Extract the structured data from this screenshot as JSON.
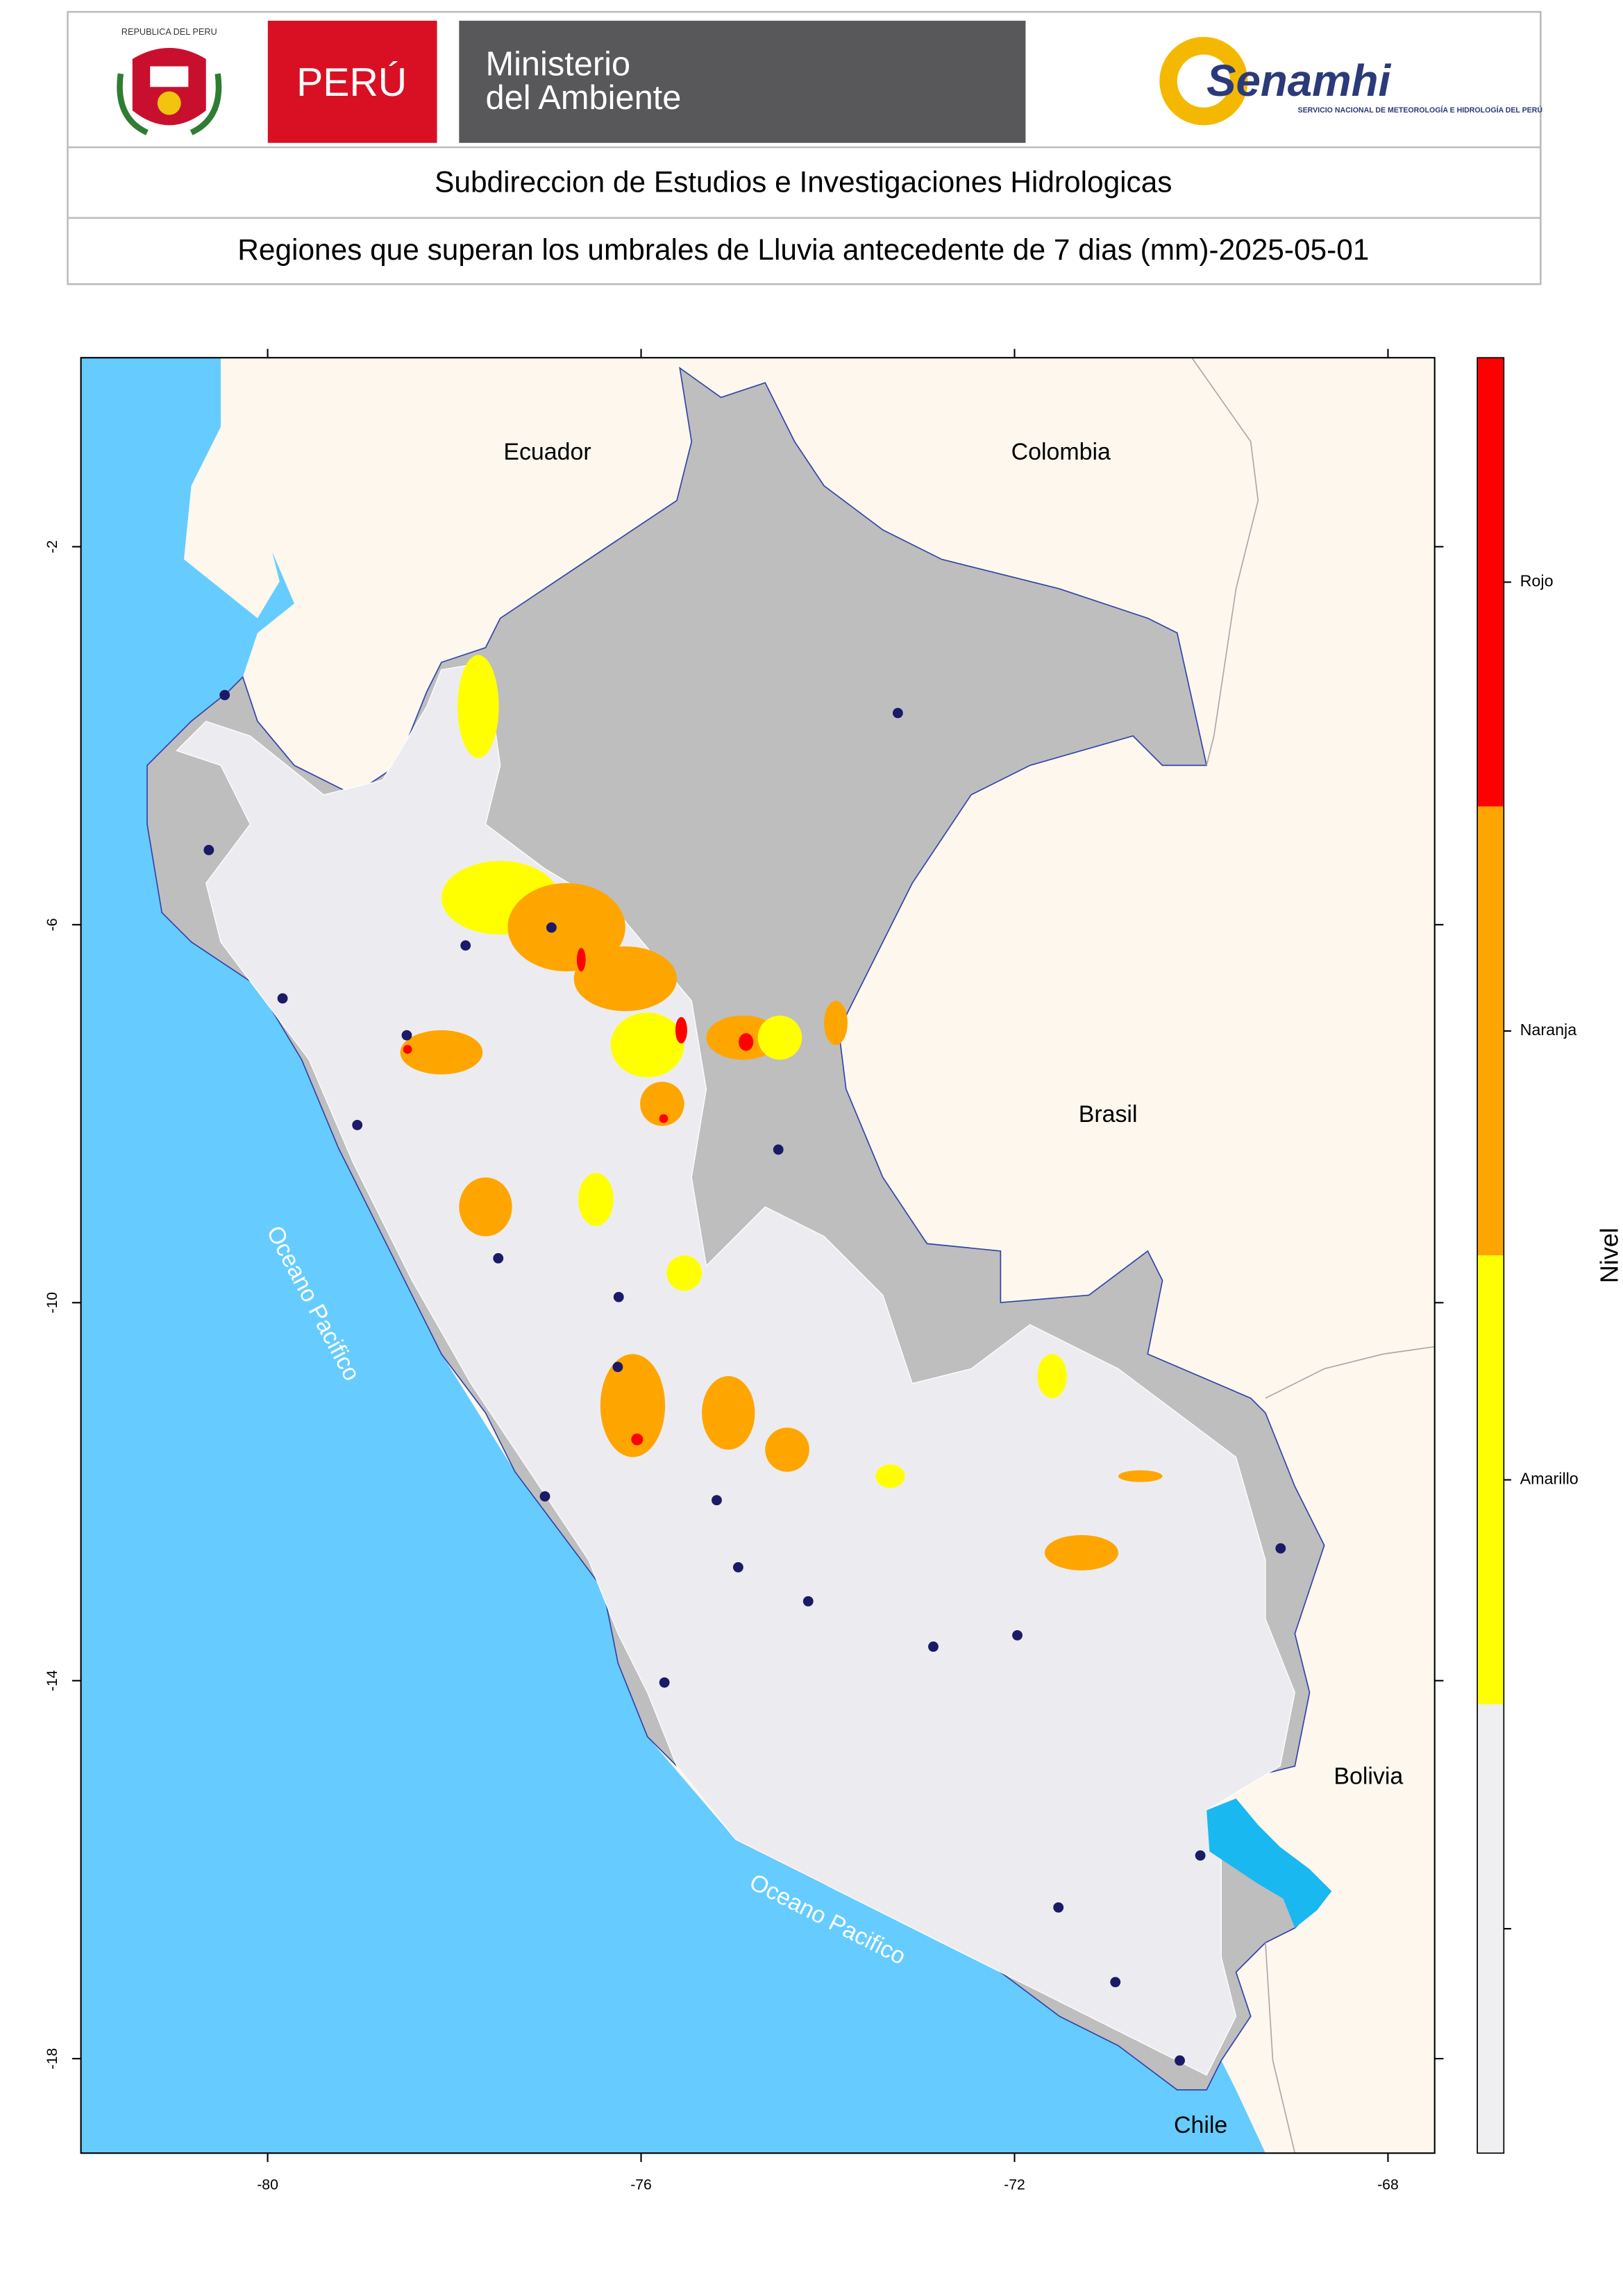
{
  "header": {
    "emblem_text": "REPUBLICA DEL PERU",
    "country": "PERÚ",
    "ministry_line1": "Ministerio",
    "ministry_line2": "del Ambiente",
    "agency": "Senamhi",
    "agency_tagline": "SERVICIO NACIONAL DE METEOROLOGÍA E HIDROLOGÍA DEL PERÚ",
    "subtitle": "Subdireccion de Estudios e Investigaciones Hidrologicas",
    "title": "Regiones que superan los umbrales de Lluvia antecedente de 7 dias (mm)-2025-05-01"
  },
  "chart_data": {
    "type": "map",
    "xlim": [
      -82,
      -67.5
    ],
    "ylim": [
      -19,
      0
    ],
    "xticks": [
      -80,
      -76,
      -72,
      -68
    ],
    "yticks": [
      -2,
      -6,
      -10,
      -14,
      -18
    ],
    "place_labels": [
      "Ecuador",
      "Colombia",
      "Brasil",
      "Bolivia",
      "Chile",
      "Oceano Pacifico",
      "Oceano Pacifico"
    ],
    "points": {
      "color": "#1a1a66",
      "lon": [
        -80.46,
        -73.25,
        -80.63,
        -76.96,
        -77.88,
        -79.84,
        -78.51,
        -74.53,
        -79.04,
        -77.53,
        -76.24,
        -76.25,
        -77.03,
        -75.19,
        -74.96,
        -74.21,
        -72.87,
        -71.97,
        -69.15,
        -75.75,
        -70.01,
        -71.53,
        -70.92,
        -70.23
      ],
      "lat": [
        -3.57,
        -3.76,
        -5.21,
        -6.03,
        -6.22,
        -6.78,
        -7.17,
        -8.38,
        -8.12,
        -9.53,
        -9.94,
        -10.68,
        -12.05,
        -12.09,
        -12.8,
        -13.16,
        -13.64,
        -13.52,
        -12.6,
        -14.02,
        -15.85,
        -16.4,
        -17.19,
        -18.02
      ]
    },
    "legend": {
      "title": "Nivel",
      "levels": [
        {
          "label": "Rojo",
          "color": "#ff0000"
        },
        {
          "label": "Naranja",
          "color": "#ffa500"
        },
        {
          "label": "Amarillo",
          "color": "#ffff00"
        },
        {
          "label": null,
          "color": "#efeff2"
        }
      ]
    }
  }
}
